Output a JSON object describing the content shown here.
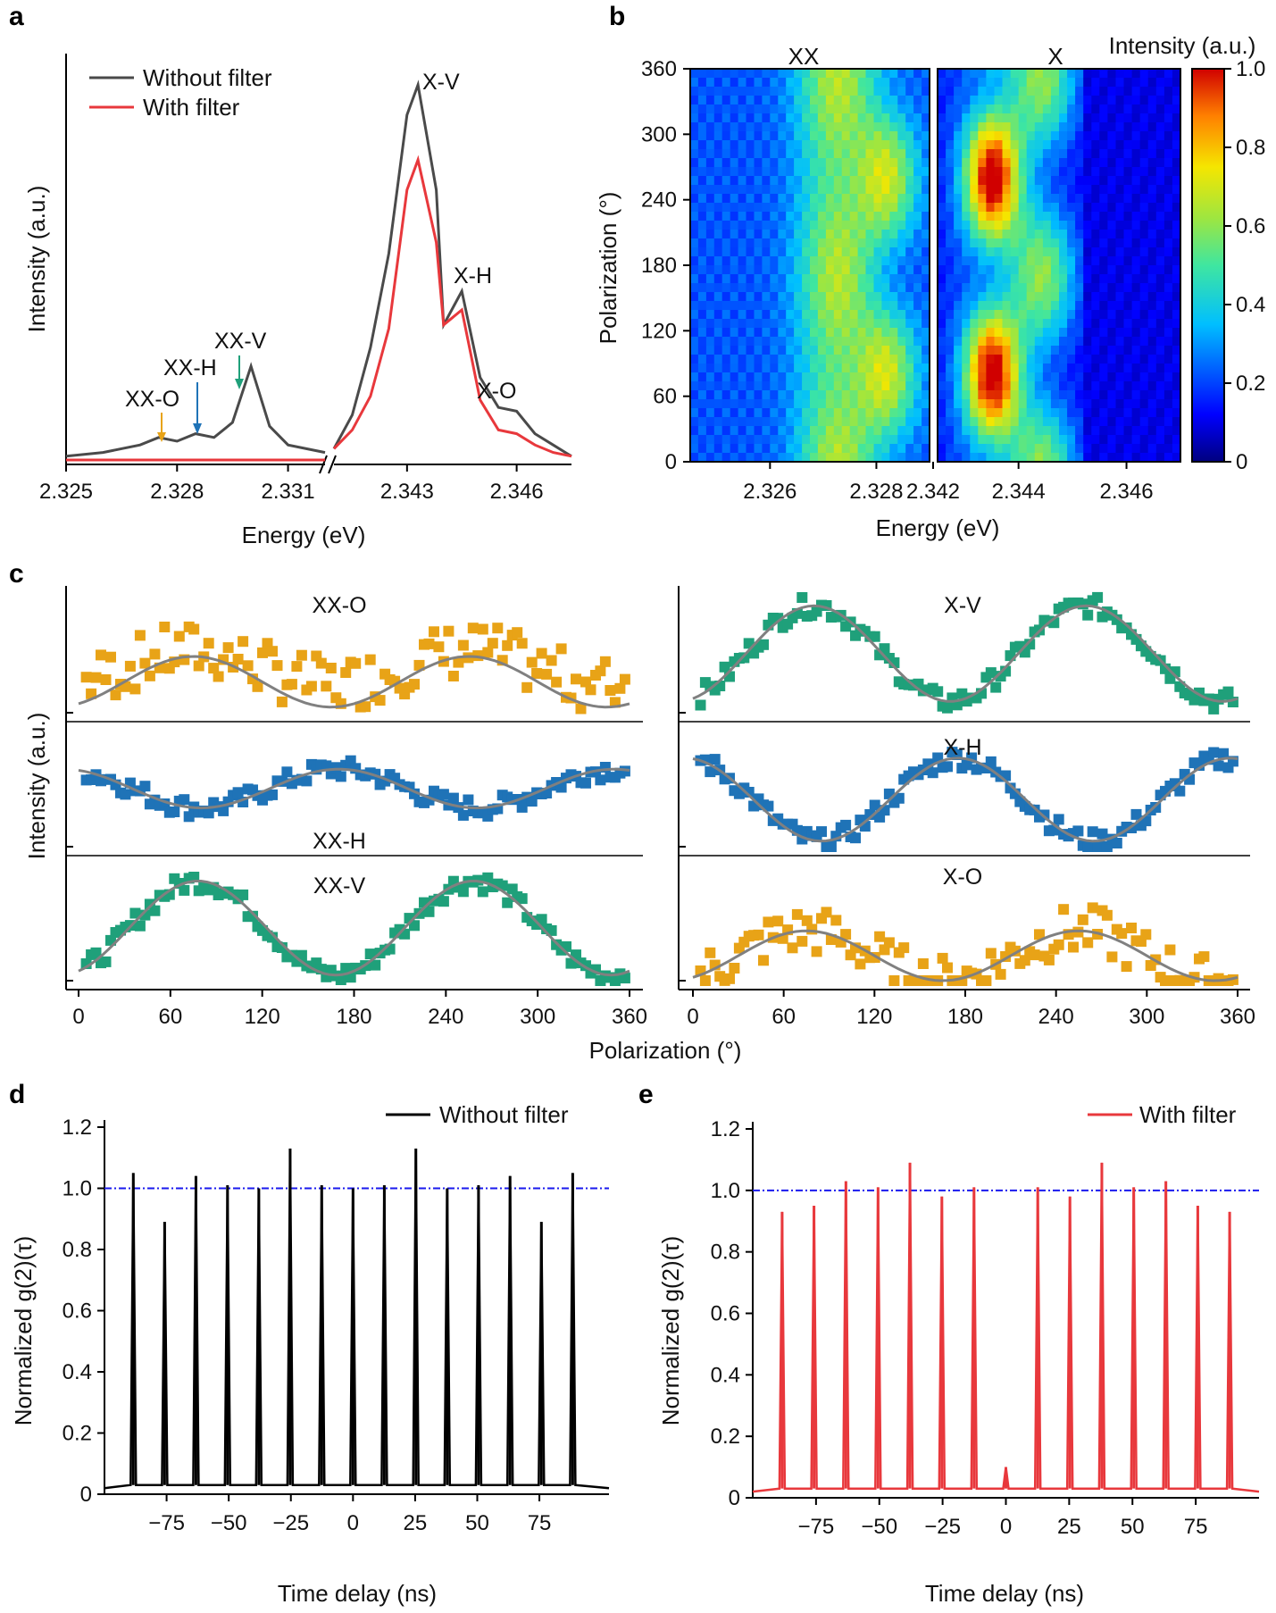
{
  "panels": {
    "a": {
      "letter": "a"
    },
    "b": {
      "letter": "b"
    },
    "c": {
      "letter": "c"
    },
    "d": {
      "letter": "d"
    },
    "e": {
      "letter": "e"
    }
  },
  "chart_data": [
    {
      "panel": "a",
      "type": "line",
      "xlabel": "Energy (eV)",
      "ylabel": "Intensity (a.u.)",
      "xticks_left": [
        "2.325",
        "2.328",
        "2.331"
      ],
      "xticks_right": [
        "2.343",
        "2.346"
      ],
      "axis_break": true,
      "legend": {
        "placement": "top-left",
        "entries": [
          "Without filter",
          "With filter"
        ]
      },
      "series": [
        {
          "name": "Without filter",
          "color": "#4a4a4a",
          "x_left": [
            2.325,
            2.326,
            2.327,
            2.3275,
            2.328,
            2.3285,
            2.329,
            2.3295,
            2.33,
            2.3305,
            2.331,
            2.332
          ],
          "y_left": [
            0.01,
            0.02,
            0.04,
            0.06,
            0.05,
            0.07,
            0.06,
            0.1,
            0.25,
            0.09,
            0.04,
            0.02
          ],
          "x_right": [
            2.341,
            2.3415,
            2.342,
            2.3425,
            2.343,
            2.3433,
            2.3438,
            2.344,
            2.3445,
            2.345,
            2.3455,
            2.346,
            2.3465,
            2.347,
            2.3475
          ],
          "y_right": [
            0.03,
            0.12,
            0.3,
            0.55,
            0.92,
            1.0,
            0.72,
            0.36,
            0.45,
            0.22,
            0.14,
            0.13,
            0.07,
            0.04,
            0.01
          ]
        },
        {
          "name": "With filter",
          "color": "#e8383c",
          "x_left": [
            2.325,
            2.332
          ],
          "y_left": [
            0.0,
            0.0
          ],
          "x_right": [
            2.341,
            2.3415,
            2.342,
            2.3425,
            2.343,
            2.3433,
            2.3438,
            2.344,
            2.3445,
            2.345,
            2.3455,
            2.346,
            2.3465,
            2.347,
            2.3475
          ],
          "y_right": [
            0.03,
            0.08,
            0.17,
            0.35,
            0.72,
            0.8,
            0.58,
            0.36,
            0.4,
            0.16,
            0.08,
            0.07,
            0.04,
            0.02,
            0.01
          ]
        }
      ],
      "annotations": [
        {
          "text": "XX-O",
          "arrow_color": "#e8a317"
        },
        {
          "text": "XX-H",
          "arrow_color": "#1f73b7"
        },
        {
          "text": "XX-V",
          "arrow_color": "#1fa07a"
        },
        {
          "text": "X-V"
        },
        {
          "text": "X-H"
        },
        {
          "text": "X-O"
        }
      ]
    },
    {
      "panel": "b",
      "type": "heatmap",
      "xlabel": "Energy (eV)",
      "ylabel": "Polarization (°)",
      "sub_titles": [
        "XX",
        "X"
      ],
      "xticks_left": [
        "2.326",
        "2.328",
        "2.342"
      ],
      "xticks_right": [
        "2.344",
        "2.346"
      ],
      "yticks": [
        "0",
        "60",
        "120",
        "180",
        "240",
        "300",
        "360"
      ],
      "colorbar": {
        "label": "Intensity (a.u.)",
        "ticks": [
          "0",
          "0.2",
          "0.4",
          "0.6",
          "0.8",
          "1.0"
        ],
        "range": [
          0,
          1
        ]
      }
    },
    {
      "panel": "c",
      "type": "scatter",
      "xlabel": "Polarization (°)",
      "ylabel": "Intensity (a.u.)",
      "xticks": [
        "0",
        "60",
        "120",
        "180",
        "240",
        "300",
        "360"
      ],
      "subplots": [
        {
          "name": "XX-O",
          "color": "#e8a317",
          "phase": 75,
          "amp": 0.45,
          "base": 0.25,
          "fit_base": 0.05
        },
        {
          "name": "XX-H",
          "color": "#1f73b7",
          "phase": -10,
          "amp": 0.35,
          "base": 0.35,
          "fit_base": 0.35
        },
        {
          "name": "XX-V",
          "color": "#1fa07a",
          "phase": 78,
          "amp": 0.85,
          "base": 0.05,
          "fit_base": 0.05
        },
        {
          "name": "X-V",
          "color": "#1fa07a",
          "phase": 80,
          "amp": 0.85,
          "base": 0.1,
          "fit_base": 0.1
        },
        {
          "name": "X-H",
          "color": "#1f73b7",
          "phase": -5,
          "amp": 0.75,
          "base": 0.05,
          "fit_base": 0.05
        },
        {
          "name": "X-O",
          "color": "#e8a317",
          "phase": 75,
          "amp": 0.45,
          "base": 0.0,
          "fit_base": 0.0
        }
      ]
    },
    {
      "panel": "d",
      "type": "line",
      "xlabel": "Time delay (ns)",
      "ylabel": "Normalized g(2)(τ)",
      "xticks": [
        "−75",
        "−50",
        "−25",
        "0",
        "25",
        "50",
        "75"
      ],
      "yticks": [
        "0",
        "0.2",
        "0.4",
        "0.6",
        "0.8",
        "1.0",
        "1.2"
      ],
      "ylim": [
        0,
        1.2
      ],
      "xlim": [
        -100,
        103
      ],
      "legend": {
        "placement": "top-right",
        "entries": [
          "Without filter"
        ]
      },
      "series": [
        {
          "name": "Without filter",
          "color": "#000000",
          "peak_x": [
            -88.4,
            -75.8,
            -63.2,
            -50.5,
            -37.9,
            -25.3,
            -12.6,
            0,
            12.6,
            25.3,
            37.9,
            50.5,
            63.2,
            75.8,
            88.4
          ],
          "peak_y": [
            1.05,
            0.89,
            1.04,
            1.01,
            1.0,
            1.13,
            1.01,
            1.0,
            1.01,
            1.13,
            1.0,
            1.01,
            1.04,
            0.89,
            1.05
          ]
        }
      ],
      "reference_line": {
        "y": 1.0,
        "color": "#1a1aee"
      }
    },
    {
      "panel": "e",
      "type": "line",
      "xlabel": "Time delay (ns)",
      "ylabel": "Normalized g(2)(τ)",
      "xticks": [
        "−75",
        "−50",
        "−25",
        "0",
        "25",
        "50",
        "75"
      ],
      "yticks": [
        "0",
        "0.2",
        "0.4",
        "0.6",
        "0.8",
        "1.0",
        "1.2"
      ],
      "ylim": [
        0,
        1.2
      ],
      "xlim": [
        -100,
        100
      ],
      "legend": {
        "placement": "top-right",
        "entries": [
          "With filter"
        ]
      },
      "series": [
        {
          "name": "With filter",
          "color": "#e8383c",
          "peak_x": [
            -88.4,
            -75.8,
            -63.2,
            -50.5,
            -37.9,
            -25.3,
            -12.6,
            0,
            12.6,
            25.3,
            37.9,
            50.5,
            63.2,
            75.8,
            88.4
          ],
          "peak_y": [
            0.93,
            0.95,
            1.03,
            1.01,
            1.09,
            0.98,
            1.01,
            0.1,
            1.01,
            0.98,
            1.09,
            1.01,
            1.03,
            0.95,
            0.93
          ]
        }
      ],
      "reference_line": {
        "y": 1.0,
        "color": "#1a1aee"
      }
    }
  ]
}
